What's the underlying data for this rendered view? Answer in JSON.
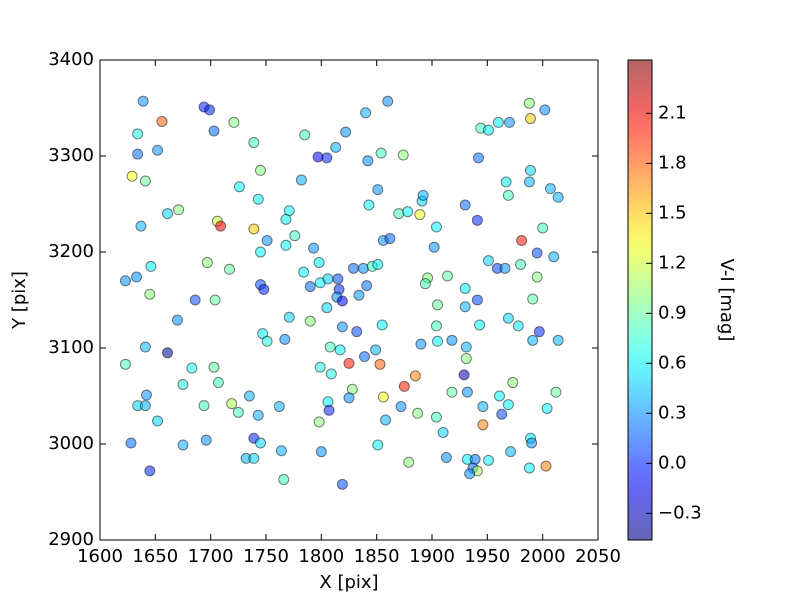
{
  "chart_data": {
    "type": "scatter",
    "xlabel": "X [pix]",
    "ylabel": "Y [pix]",
    "xlim": [
      1600,
      2050
    ],
    "xticks": [
      1600,
      1650,
      1700,
      1750,
      1800,
      1850,
      1900,
      1950,
      2000,
      2050
    ],
    "ylim": [
      2900,
      3400
    ],
    "yticks": [
      2900,
      3000,
      3100,
      3200,
      3300,
      3400
    ],
    "x": [
      1639,
      1656,
      1634,
      1634,
      1652,
      1629,
      1641,
      1637,
      1661,
      1671,
      1633,
      1623,
      1646,
      1645,
      1686,
      1670,
      1641,
      1661,
      1623,
      1683,
      1675,
      1642,
      1634,
      1641,
      1652,
      1628,
      1645,
      1675,
      1696,
      1694,
      1707,
      1703,
      1719,
      1725,
      1735,
      1743,
      1739,
      1745,
      1732,
      1739,
      1764,
      1766,
      1762,
      1694,
      1699,
      1703,
      1721,
      1739,
      1745,
      1726,
      1743,
      1706,
      1709,
      1739,
      1751,
      1771,
      1768,
      1776,
      1768,
      1745,
      1717,
      1697,
      1704,
      1745,
      1748,
      1771,
      1747,
      1751,
      1767,
      1782,
      1785,
      1797,
      1805,
      1813,
      1822,
      1840,
      1860,
      1842,
      1854,
      1851,
      1874,
      1843,
      1870,
      1878,
      1889,
      1891,
      1892,
      1856,
      1862,
      1793,
      1798,
      1784,
      1790,
      1799,
      1806,
      1815,
      1816,
      1829,
      1838,
      1846,
      1851,
      1841,
      1834,
      1814,
      1819,
      1790,
      1805,
      1819,
      1832,
      1855,
      1839,
      1849,
      1808,
      1817,
      1799,
      1809,
      1825,
      1853,
      1828,
      1825,
      1856,
      1806,
      1807,
      1798,
      1858,
      1851,
      1800,
      1819,
      1872,
      1875,
      1885,
      1887,
      1879,
      1890,
      1904,
      1910,
      1905,
      1904,
      1896,
      1894,
      1914,
      1905,
      1918,
      1902,
      1904,
      1930,
      1941,
      1942,
      1944,
      1951,
      1960,
      1970,
      1988,
      1989,
      2002,
      1989,
      1988,
      1967,
      1969,
      2007,
      2014,
      2000,
      1981,
      1995,
      2010,
      1951,
      1959,
      1966,
      1980,
      1995,
      1930,
      1941,
      1930,
      1991,
      1969,
      1978,
      1997,
      1991,
      2014,
      1943,
      1931,
      1931,
      1929,
      1932,
      1918,
      1946,
      1961,
      1963,
      1969,
      1973,
      2004,
      2012,
      1946,
      1989,
      1990,
      1971,
      1913,
      1932,
      1939,
      1937,
      1941,
      1934,
      1951,
      1988,
      2003
    ],
    "y": [
      3357,
      3336,
      3323,
      3302,
      3306,
      3279,
      3274,
      3227,
      3240,
      3244,
      3174,
      3170,
      3185,
      3156,
      3150,
      3129,
      3101,
      3095,
      3083,
      3079,
      3062,
      3051,
      3040,
      3040,
      3024,
      3001,
      2972,
      2999,
      3004,
      3040,
      3064,
      3080,
      3042,
      3033,
      3050,
      3030,
      3006,
      3001,
      2985,
      2985,
      2993,
      2963,
      3039,
      3351,
      3348,
      3326,
      3335,
      3314,
      3285,
      3268,
      3255,
      3232,
      3227,
      3224,
      3212,
      3243,
      3234,
      3217,
      3207,
      3200,
      3182,
      3189,
      3150,
      3166,
      3161,
      3132,
      3115,
      3107,
      3109,
      3275,
      3322,
      3299,
      3298,
      3309,
      3325,
      3345,
      3357,
      3295,
      3303,
      3265,
      3301,
      3249,
      3240,
      3242,
      3239,
      3253,
      3259,
      3212,
      3214,
      3204,
      3189,
      3179,
      3164,
      3168,
      3172,
      3172,
      3161,
      3183,
      3183,
      3185,
      3187,
      3165,
      3155,
      3153,
      3149,
      3128,
      3142,
      3122,
      3117,
      3124,
      3091,
      3098,
      3101,
      3098,
      3080,
      3073,
      3084,
      3083,
      3057,
      3048,
      3049,
      3044,
      3035,
      3023,
      3025,
      2999,
      2992,
      2958,
      3039,
      3060,
      3071,
      3032,
      2981,
      3104,
      3028,
      3012,
      3145,
      3123,
      3173,
      3167,
      3175,
      3107,
      3108,
      3205,
      3226,
      3249,
      3233,
      3298,
      3329,
      3327,
      3335,
      3335,
      3355,
      3339,
      3348,
      3285,
      3273,
      3273,
      3259,
      3266,
      3257,
      3225,
      3212,
      3199,
      3195,
      3191,
      3183,
      3183,
      3187,
      3174,
      3162,
      3150,
      3143,
      3151,
      3131,
      3123,
      3117,
      3108,
      3108,
      3124,
      3101,
      3089,
      3072,
      3054,
      3054,
      3039,
      3050,
      3031,
      3041,
      3064,
      3037,
      3054,
      3020,
      3006,
      3001,
      2992,
      2986,
      2984,
      2984,
      2975,
      2972,
      2969,
      2983,
      2975,
      2977
    ],
    "color_values": [
      0.3,
      1.8,
      0.7,
      0.2,
      0.3,
      1.3,
      0.9,
      0.4,
      0.5,
      1.0,
      0.3,
      0.3,
      0.6,
      1.0,
      0.1,
      0.3,
      0.4,
      -0.4,
      0.8,
      0.7,
      0.7,
      0.3,
      0.5,
      0.4,
      0.5,
      0.2,
      0.0,
      0.4,
      0.3,
      0.8,
      0.8,
      0.9,
      1.1,
      0.8,
      0.4,
      0.4,
      0.0,
      0.5,
      0.4,
      0.5,
      0.4,
      0.8,
      0.4,
      0.0,
      0.0,
      0.2,
      1.0,
      0.8,
      1.0,
      0.6,
      0.6,
      1.2,
      2.1,
      1.5,
      0.3,
      0.6,
      0.6,
      0.8,
      0.6,
      0.6,
      0.9,
      1.0,
      0.9,
      0.1,
      0.0,
      0.5,
      0.6,
      0.7,
      0.3,
      0.4,
      0.8,
      -0.1,
      0.0,
      0.4,
      0.3,
      0.4,
      0.3,
      0.3,
      0.8,
      0.3,
      1.0,
      0.6,
      0.8,
      0.6,
      1.3,
      0.5,
      0.4,
      0.3,
      0.2,
      0.3,
      0.6,
      0.6,
      0.2,
      0.6,
      0.5,
      0.1,
      0.0,
      0.2,
      0.3,
      0.8,
      0.6,
      0.2,
      0.3,
      0.3,
      -0.1,
      1.0,
      0.5,
      0.3,
      0.1,
      0.6,
      0.2,
      0.4,
      0.8,
      0.6,
      0.7,
      0.7,
      2.0,
      1.8,
      1.0,
      0.3,
      1.3,
      0.6,
      0.0,
      1.0,
      0.4,
      0.6,
      0.3,
      0.1,
      0.3,
      2.0,
      1.7,
      1.0,
      1.0,
      0.3,
      0.8,
      0.5,
      0.9,
      0.8,
      1.0,
      0.8,
      0.9,
      0.6,
      0.3,
      0.3,
      0.6,
      0.2,
      0.0,
      0.2,
      0.8,
      0.6,
      0.6,
      0.3,
      1.0,
      1.5,
      0.3,
      0.5,
      0.4,
      0.6,
      0.8,
      0.4,
      0.4,
      0.8,
      2.0,
      0.1,
      0.4,
      0.5,
      0.1,
      0.3,
      0.8,
      1.0,
      0.6,
      0.1,
      0.4,
      0.9,
      0.5,
      0.6,
      0.0,
      0.4,
      0.4,
      0.6,
      0.4,
      1.0,
      -0.3,
      0.3,
      0.9,
      0.4,
      0.6,
      0.1,
      0.6,
      1.0,
      0.6,
      0.9,
      1.7,
      0.6,
      0.3,
      0.4,
      0.3,
      0.6,
      0.2,
      0.2,
      1.1,
      0.3,
      0.6,
      0.6,
      1.7
    ],
    "colormap": "jet",
    "colorbar": {
      "label": "V-I [mag]",
      "lim": [
        -0.46,
        2.42
      ],
      "ticks": [
        {
          "value": -0.3,
          "label": "−0.3"
        },
        {
          "value": 0,
          "label": "0.0"
        },
        0.3,
        0.6,
        0.9,
        1.2,
        1.5,
        1.8,
        2.1
      ]
    }
  }
}
